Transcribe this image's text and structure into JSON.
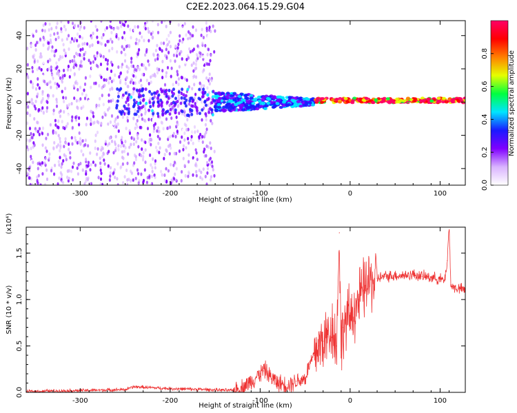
{
  "figure_title": "C2E2.2023.064.15.29.G04",
  "chart_data": [
    {
      "type": "heatmap",
      "title": "C2E2.2023.064.15.29.G04",
      "xlabel": "Height of straight line (km)",
      "ylabel": "Frequency (Hz)",
      "xlim": [
        -360,
        128
      ],
      "ylim": [
        -50,
        49
      ],
      "xticks": [
        -300,
        -200,
        -100,
        0,
        100
      ],
      "yticks": [
        -40,
        -20,
        0,
        20,
        40
      ],
      "colorbar": {
        "label": "Normalized spectral amplitude",
        "range": [
          0.0,
          1.0
        ],
        "ticks": [
          "0.0",
          "0.2",
          "0.4",
          "0.6",
          "0.8"
        ],
        "colors": [
          "#ffffff",
          "#d9b3ff",
          "#8000ff",
          "#1a1aff",
          "#00e5ff",
          "#00ff40",
          "#e5ff00",
          "#ff8000",
          "#ff0000",
          "#ff0066"
        ]
      },
      "features": [
        {
          "x_range": [
            -360,
            -150
          ],
          "description_shown": "broadband scatter",
          "freq_range": [
            -50,
            49
          ],
          "amplitude": 0.1
        },
        {
          "x_range": [
            -150,
            -40
          ],
          "freq_center": 0,
          "amplitude": 0.35
        },
        {
          "x_range": [
            -40,
            128
          ],
          "freq_center": 1,
          "amplitude": 0.85
        }
      ]
    },
    {
      "type": "line",
      "xlabel": "Height of straight line (km)",
      "ylabel": "SNR (10 * v/v)",
      "y_multiplier": "(x10⁴)",
      "xlim": [
        -360,
        128
      ],
      "ylim": [
        0,
        1.78
      ],
      "xticks": [
        -300,
        -200,
        -100,
        0,
        100
      ],
      "yticks": [
        0.0,
        0.5,
        1.0,
        1.5
      ],
      "ytick_labels": [
        "0.0",
        "0.5",
        "1.0",
        "1.5"
      ],
      "series": [
        {
          "color": "#ee3333",
          "x": [
            -360,
            -300,
            -250,
            -240,
            -200,
            -160,
            -130,
            -120,
            -110,
            -100,
            -95,
            -90,
            -80,
            -70,
            -60,
            -50,
            -45,
            -40,
            -35,
            -30,
            -25,
            -20,
            -15,
            -12,
            -10,
            -8,
            -5,
            0,
            5,
            10,
            15,
            20,
            30,
            40,
            50,
            60,
            70,
            80,
            90,
            100,
            105,
            108,
            110,
            112,
            115,
            120,
            128
          ],
          "y": [
            0.01,
            0.02,
            0.03,
            0.06,
            0.04,
            0.03,
            0.02,
            0.05,
            0.12,
            0.2,
            0.25,
            0.18,
            0.1,
            0.08,
            0.12,
            0.15,
            0.3,
            0.4,
            0.5,
            0.55,
            0.6,
            0.72,
            0.5,
            1.72,
            0.45,
            0.7,
            0.75,
            0.82,
            0.9,
            1.0,
            1.1,
            1.18,
            1.23,
            1.25,
            1.26,
            1.26,
            1.27,
            1.25,
            1.24,
            1.22,
            1.2,
            1.42,
            1.8,
            1.15,
            1.13,
            1.12,
            1.1
          ]
        }
      ]
    }
  ]
}
